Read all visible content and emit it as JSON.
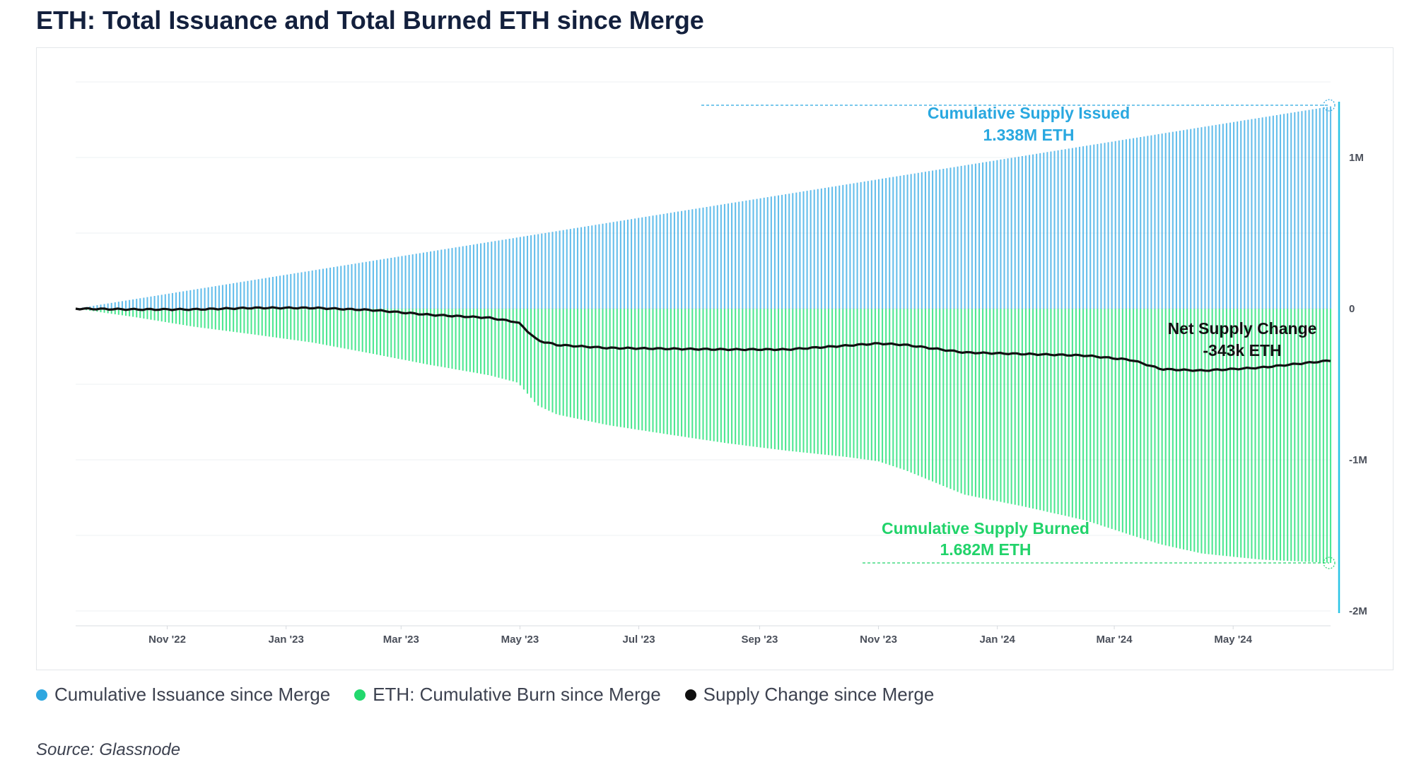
{
  "title": "ETH: Total Issuance and Total Burned ETH since Merge",
  "source": "Source: Glassnode",
  "colors": {
    "issuance": "#4ab3e8",
    "burn": "#2fe37f",
    "net": "#111111",
    "issued_text": "#29a8e0",
    "burned_text": "#21d36a",
    "axis_accent": "#29c4e6"
  },
  "legend": [
    {
      "label": "Cumulative Issuance since Merge",
      "color": "#2ea7e0"
    },
    {
      "label": "ETH: Cumulative Burn since Merge",
      "color": "#22d86d"
    },
    {
      "label": "Supply Change since Merge",
      "color": "#0f0f0f"
    }
  ],
  "annotations": {
    "issued_title": "Cumulative Supply Issued",
    "issued_value": "1.338M ETH",
    "burned_title": "Cumulative Supply Burned",
    "burned_value": "1.682M ETH",
    "net_title": "Net Supply Change",
    "net_value": "-343k ETH"
  },
  "chart_data": {
    "type": "area",
    "x_start": "2022-09-15",
    "x_end": "2024-06-20",
    "x_tick_labels": [
      "Nov '22",
      "Jan '23",
      "Mar '23",
      "May '23",
      "Jul '23",
      "Sep '23",
      "Nov '23",
      "Jan '24",
      "Mar '24",
      "May '24"
    ],
    "x_tick_dates": [
      "2022-11-01",
      "2023-01-01",
      "2023-03-01",
      "2023-05-01",
      "2023-07-01",
      "2023-09-01",
      "2023-11-01",
      "2024-01-01",
      "2024-03-01",
      "2024-05-01"
    ],
    "y_ticks": [
      1000000,
      0,
      -1000000,
      -2000000
    ],
    "y_tick_labels": [
      "1M",
      "0",
      "-1M",
      "-2M"
    ],
    "ylim": [
      -2000000,
      1500000
    ],
    "series": [
      {
        "name": "Cumulative Issuance since Merge",
        "points": [
          [
            "2022-09-15",
            0
          ],
          [
            "2024-06-20",
            1338000
          ]
        ]
      },
      {
        "name": "ETH: Cumulative Burn since Merge",
        "points": [
          [
            "2022-09-15",
            0
          ],
          [
            "2022-10-15",
            -55000
          ],
          [
            "2022-11-15",
            -120000
          ],
          [
            "2022-12-15",
            -170000
          ],
          [
            "2023-01-15",
            -225000
          ],
          [
            "2023-02-15",
            -300000
          ],
          [
            "2023-03-15",
            -370000
          ],
          [
            "2023-04-15",
            -440000
          ],
          [
            "2023-04-30",
            -490000
          ],
          [
            "2023-05-10",
            -640000
          ],
          [
            "2023-05-20",
            -700000
          ],
          [
            "2023-06-15",
            -770000
          ],
          [
            "2023-07-15",
            -830000
          ],
          [
            "2023-08-15",
            -890000
          ],
          [
            "2023-09-15",
            -940000
          ],
          [
            "2023-10-15",
            -980000
          ],
          [
            "2023-11-01",
            -1010000
          ],
          [
            "2023-11-15",
            -1070000
          ],
          [
            "2023-12-15",
            -1230000
          ],
          [
            "2024-01-15",
            -1310000
          ],
          [
            "2024-02-15",
            -1400000
          ],
          [
            "2024-03-10",
            -1500000
          ],
          [
            "2024-03-25",
            -1560000
          ],
          [
            "2024-04-15",
            -1620000
          ],
          [
            "2024-05-15",
            -1660000
          ],
          [
            "2024-06-20",
            -1682000
          ]
        ]
      },
      {
        "name": "Supply Change since Merge",
        "points": [
          [
            "2022-09-15",
            0
          ],
          [
            "2022-10-15",
            -5000
          ],
          [
            "2022-11-15",
            -5000
          ],
          [
            "2022-12-15",
            5000
          ],
          [
            "2023-01-15",
            5000
          ],
          [
            "2023-02-15",
            -10000
          ],
          [
            "2023-03-15",
            -40000
          ],
          [
            "2023-04-15",
            -60000
          ],
          [
            "2023-04-30",
            -90000
          ],
          [
            "2023-05-10",
            -210000
          ],
          [
            "2023-05-20",
            -240000
          ],
          [
            "2023-06-15",
            -260000
          ],
          [
            "2023-07-15",
            -265000
          ],
          [
            "2023-08-15",
            -270000
          ],
          [
            "2023-09-15",
            -270000
          ],
          [
            "2023-10-15",
            -245000
          ],
          [
            "2023-11-01",
            -230000
          ],
          [
            "2023-11-15",
            -240000
          ],
          [
            "2023-12-15",
            -290000
          ],
          [
            "2024-01-15",
            -300000
          ],
          [
            "2024-02-15",
            -310000
          ],
          [
            "2024-03-10",
            -340000
          ],
          [
            "2024-03-25",
            -400000
          ],
          [
            "2024-04-15",
            -410000
          ],
          [
            "2024-05-15",
            -390000
          ],
          [
            "2024-06-20",
            -343000
          ]
        ]
      }
    ]
  }
}
